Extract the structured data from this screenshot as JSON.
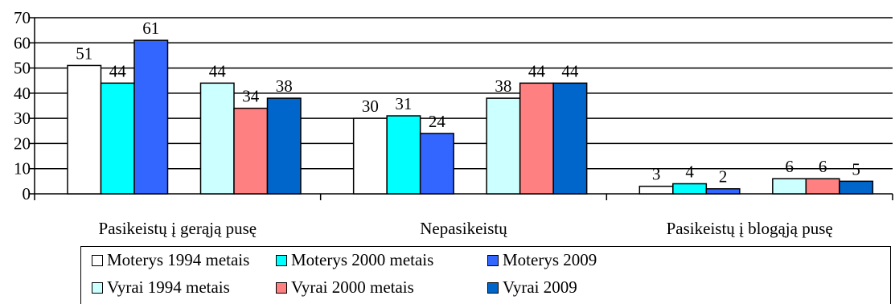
{
  "chart_data": {
    "type": "bar",
    "categories": [
      "Pasikeistų į gerąją pusę",
      "Nepasikeistų",
      "Pasikeistų į blogąją pusę"
    ],
    "series": [
      {
        "name": "Moterys 1994 metais",
        "values": [
          51,
          30,
          3
        ],
        "color": "#ffffff"
      },
      {
        "name": "Moterys 2000 metais",
        "values": [
          44,
          31,
          4
        ],
        "color": "#00ffff"
      },
      {
        "name": "Moterys 2009",
        "values": [
          61,
          24,
          2
        ],
        "color": "#3366ff"
      },
      {
        "name": "Vyrai 1994 metais",
        "values": [
          44,
          38,
          6
        ],
        "color": "#ccffff"
      },
      {
        "name": "Vyrai 2000 metais",
        "values": [
          34,
          44,
          6
        ],
        "color": "#ff8080"
      },
      {
        "name": "Vyrai 2009",
        "values": [
          38,
          44,
          5
        ],
        "color": "#0066cc"
      }
    ],
    "ylim": [
      0,
      70
    ],
    "yticks": [
      "0",
      "10",
      "20",
      "30",
      "40",
      "50",
      "60",
      "70"
    ],
    "grid": true,
    "legend_position": "bottom",
    "title": "",
    "xlabel": "",
    "ylabel": ""
  }
}
